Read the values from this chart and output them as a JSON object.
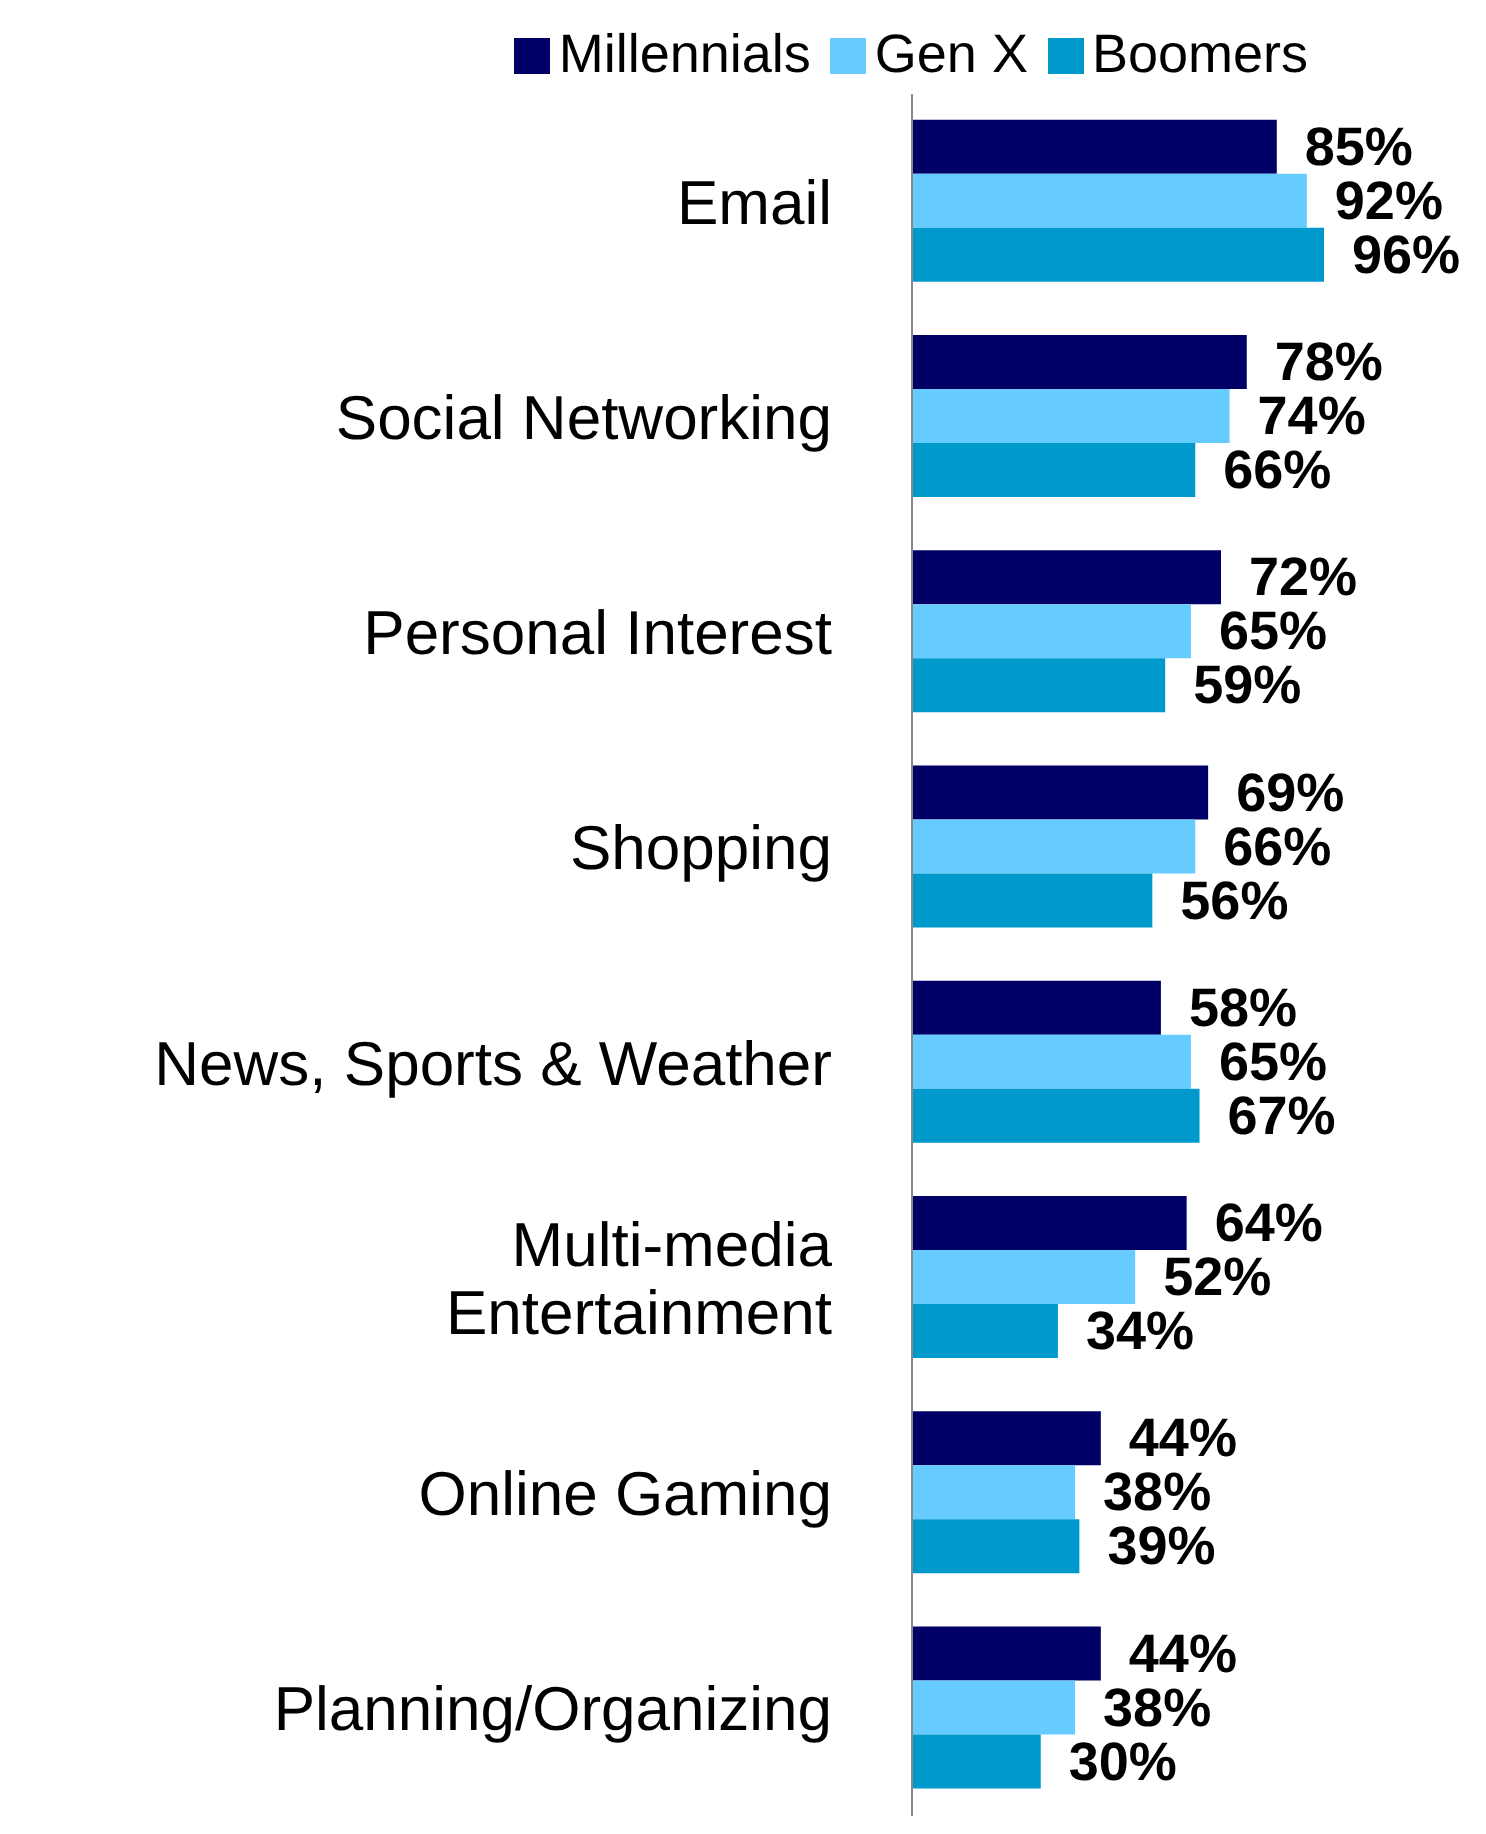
{
  "chart_data": {
    "type": "bar",
    "orientation": "horizontal",
    "legend": "top",
    "categories": [
      "Email",
      "Social Networking",
      "Personal Interest",
      "Shopping",
      "News, Sports & Weather",
      "Multi-media Entertainment",
      "Online Gaming",
      "Planning/Organizing"
    ],
    "series": [
      {
        "name": "Millennials",
        "color": "#000066",
        "values": [
          85,
          78,
          72,
          69,
          58,
          64,
          44,
          44
        ],
        "value_labels": [
          "85%",
          "78%",
          "72%",
          "69%",
          "58%",
          "64%",
          "44%",
          "44%"
        ]
      },
      {
        "name": "Gen X",
        "color": "#66ccff",
        "values": [
          92,
          74,
          65,
          66,
          65,
          52,
          38,
          38
        ],
        "value_labels": [
          "92%",
          "74%",
          "65%",
          "66%",
          "65%",
          "52%",
          "38%",
          "38%"
        ]
      },
      {
        "name": "Boomers",
        "color": "#0099cc",
        "values": [
          96,
          66,
          59,
          56,
          67,
          34,
          39,
          30
        ],
        "value_labels": [
          "96%",
          "66%",
          "59%",
          "56%",
          "67%",
          "34%",
          "39%",
          "30%"
        ]
      }
    ]
  }
}
